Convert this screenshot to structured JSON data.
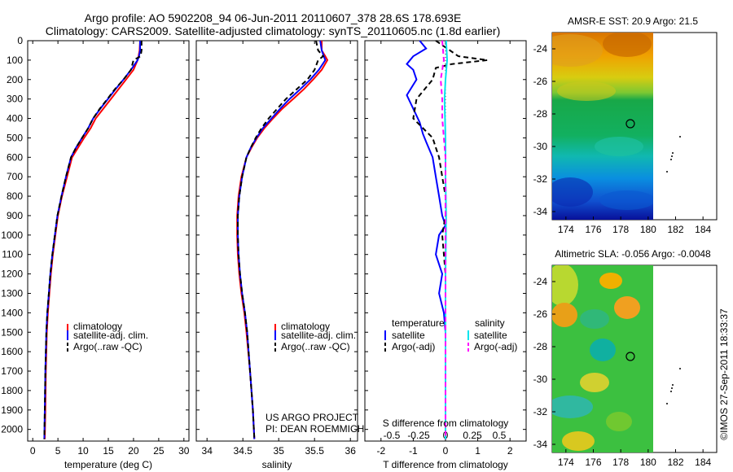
{
  "header": {
    "line1": "Argo profile: AO 5902208_94 06-Jun-2011 20110607_378 28.6S 178.693E",
    "line2": "Climatology: CARS2009. Satellite-adjusted climatology: synTS_20110605.nc (1.8d earlier)"
  },
  "colors": {
    "climatology": "#ff0000",
    "satellite": "#0000ff",
    "argo": "#000000",
    "sal_satellite": "#00e5ee",
    "sal_argo": "#ff00ff"
  },
  "panels": {
    "temperature": {
      "xlabel": "temperature (deg C)",
      "xlim": [
        -1,
        31
      ],
      "xticks": [
        "0",
        "5",
        "10",
        "15",
        "20",
        "25",
        "30"
      ],
      "xtick_values": [
        0,
        5,
        10,
        15,
        20,
        25,
        30
      ],
      "legend": [
        "climatology",
        "satellite-adj. clim.",
        "Argo(..raw -QC)"
      ]
    },
    "salinity": {
      "xlabel": "salinity",
      "xlim": [
        33.85,
        36.1
      ],
      "xticks": [
        "34",
        "34.5",
        "35",
        "35.5",
        "36"
      ],
      "xtick_values": [
        34,
        34.5,
        35,
        35.5,
        36
      ],
      "legend": [
        "climatology",
        "satellite-adj. clim.",
        "Argo(..raw -QC)"
      ],
      "note1": "US ARGO PROJECT",
      "note2": "PI: DEAN ROEMMICH"
    },
    "difference": {
      "xlabel": "T difference from climatology",
      "xlim": [
        -2.5,
        2.5
      ],
      "xticks": [
        "-2",
        "-1",
        "0",
        "1",
        "2"
      ],
      "xtick_values": [
        -2,
        -1,
        0,
        1,
        2
      ],
      "top_axis_label": "S difference from climatology",
      "top_ticks": [
        "-0.5",
        "-0.25",
        "0",
        "0.25",
        "0.5"
      ],
      "top_tick_values": [
        -0.5,
        -0.25,
        0,
        0.25,
        0.5
      ],
      "legend_temp_title": "temperature",
      "legend_sal_title": "salinity",
      "legend_temp": [
        "satellite",
        "Argo(-adj)"
      ],
      "legend_sal": [
        "satellite",
        "Argo(-adj)"
      ]
    }
  },
  "depth_axis": {
    "ylim": [
      0,
      2060
    ],
    "ticks": [
      "0",
      "100",
      "200",
      "300",
      "400",
      "500",
      "600",
      "700",
      "800",
      "900",
      "1000",
      "1100",
      "1200",
      "1300",
      "1400",
      "1500",
      "1600",
      "1700",
      "1800",
      "1900",
      "2000"
    ],
    "tick_values": [
      0,
      100,
      200,
      300,
      400,
      500,
      600,
      700,
      800,
      900,
      1000,
      1100,
      1200,
      1300,
      1400,
      1500,
      1600,
      1700,
      1800,
      1900,
      2000
    ]
  },
  "maps": {
    "sst": {
      "title": "AMSR-E SST: 20.9  Argo: 21.5",
      "xticks": [
        "174",
        "176",
        "178",
        "180",
        "182",
        "184"
      ],
      "xtick_values": [
        174,
        176,
        178,
        180,
        182,
        184
      ],
      "yticks": [
        "-24",
        "-26",
        "-28",
        "-30",
        "-32",
        "-34"
      ],
      "ytick_values": [
        -24,
        -26,
        -28,
        -30,
        -32,
        -34
      ],
      "lon_range": [
        173,
        185
      ],
      "lat_range": [
        -23,
        -34.5
      ],
      "float_position": [
        178.7,
        -28.6
      ]
    },
    "sla": {
      "title": "Altimetric SLA: -0.056  Argo: -0.0048",
      "xticks": [
        "174",
        "176",
        "178",
        "180",
        "182",
        "184"
      ],
      "xtick_values": [
        174,
        176,
        178,
        180,
        182,
        184
      ],
      "yticks": [
        "-24",
        "-26",
        "-28",
        "-30",
        "-32",
        "-34"
      ],
      "ytick_values": [
        -24,
        -26,
        -28,
        -30,
        -32,
        -34
      ],
      "lon_range": [
        173,
        185
      ],
      "lat_range": [
        -23,
        -34.5
      ],
      "float_position": [
        178.7,
        -28.6
      ]
    }
  },
  "credit": "©IMOS 27-Sep-2011 18:33:37",
  "chart_data": [
    {
      "type": "line",
      "title": "",
      "xlabel": "temperature (deg C)",
      "ylabel": "",
      "xlim": [
        -1,
        31
      ],
      "ylim": [
        0,
        2060
      ],
      "y_reversed": true,
      "series": [
        {
          "name": "climatology",
          "x": [
            21.3,
            21.2,
            21.0,
            20.8,
            20.0,
            18.5,
            17.0,
            15.5,
            14.0,
            12.5,
            11.5,
            10.2,
            9.0,
            7.8,
            6.8,
            5.8,
            5.0,
            4.5,
            4.0,
            3.6,
            3.3,
            3.0,
            2.8,
            2.6,
            2.5,
            2.4
          ],
          "y": [
            0,
            50,
            80,
            100,
            150,
            200,
            250,
            300,
            350,
            400,
            450,
            500,
            550,
            600,
            700,
            800,
            900,
            1000,
            1100,
            1200,
            1300,
            1400,
            1500,
            1700,
            1900,
            2050
          ]
        },
        {
          "name": "satellite-adj. clim.",
          "x": [
            21.3,
            21.3,
            21.1,
            20.8,
            19.5,
            18.0,
            16.4,
            14.9,
            13.4,
            12.0,
            11.0,
            9.8,
            8.6,
            7.6,
            6.6,
            5.7,
            4.9,
            4.4,
            3.9,
            3.5,
            3.2,
            2.9,
            2.7,
            2.5,
            2.4,
            2.3
          ],
          "y": [
            0,
            50,
            80,
            100,
            150,
            200,
            250,
            300,
            350,
            400,
            450,
            500,
            550,
            600,
            700,
            800,
            900,
            1000,
            1100,
            1200,
            1300,
            1400,
            1500,
            1700,
            1900,
            2050
          ]
        },
        {
          "name": "Argo(..raw -QC)",
          "x": [
            21.6,
            21.6,
            21.4,
            20.0,
            19.5,
            18.0,
            16.3,
            14.8,
            13.3,
            12.0,
            11.0,
            9.8,
            8.6,
            7.6,
            6.6,
            5.7,
            4.9,
            4.4,
            3.9,
            3.5,
            3.2,
            2.9,
            2.7,
            2.5,
            2.4,
            2.3
          ],
          "y": [
            0,
            50,
            80,
            100,
            150,
            200,
            250,
            300,
            350,
            400,
            450,
            500,
            550,
            600,
            700,
            800,
            900,
            1000,
            1100,
            1200,
            1300,
            1400,
            1500,
            1700,
            1900,
            2050
          ]
        }
      ]
    },
    {
      "type": "line",
      "title": "",
      "xlabel": "salinity",
      "ylabel": "",
      "xlim": [
        33.85,
        36.1
      ],
      "ylim": [
        0,
        2060
      ],
      "y_reversed": true,
      "series": [
        {
          "name": "climatology",
          "x": [
            35.6,
            35.6,
            35.65,
            35.68,
            35.6,
            35.48,
            35.35,
            35.2,
            35.05,
            34.92,
            34.8,
            34.7,
            34.62,
            34.55,
            34.48,
            34.44,
            34.42,
            34.42,
            34.43,
            34.45,
            34.48,
            34.52,
            34.55,
            34.6,
            34.64,
            34.66
          ],
          "y": [
            0,
            50,
            80,
            100,
            150,
            200,
            250,
            300,
            350,
            400,
            450,
            500,
            550,
            600,
            700,
            800,
            900,
            1000,
            1100,
            1200,
            1300,
            1400,
            1500,
            1700,
            1900,
            2050
          ]
        },
        {
          "name": "satellite-adj. clim.",
          "x": [
            35.58,
            35.6,
            35.63,
            35.65,
            35.56,
            35.44,
            35.3,
            35.15,
            35.02,
            34.9,
            34.78,
            34.69,
            34.61,
            34.55,
            34.49,
            34.45,
            34.43,
            34.43,
            34.44,
            34.46,
            34.49,
            34.53,
            34.56,
            34.6,
            34.64,
            34.66
          ],
          "y": [
            0,
            50,
            80,
            100,
            150,
            200,
            250,
            300,
            350,
            400,
            450,
            500,
            550,
            600,
            700,
            800,
            900,
            1000,
            1100,
            1200,
            1300,
            1400,
            1500,
            1700,
            1900,
            2050
          ]
        },
        {
          "name": "Argo(..raw -QC)",
          "x": [
            35.52,
            35.55,
            35.62,
            35.55,
            35.5,
            35.4,
            35.25,
            35.1,
            34.98,
            34.86,
            34.76,
            34.68,
            34.61,
            34.55,
            34.49,
            34.45,
            34.43,
            34.43,
            34.44,
            34.46,
            34.49,
            34.53,
            34.56,
            34.6,
            34.64,
            34.66
          ],
          "y": [
            0,
            50,
            80,
            100,
            150,
            200,
            250,
            300,
            350,
            400,
            450,
            500,
            550,
            600,
            700,
            800,
            900,
            1000,
            1100,
            1200,
            1300,
            1400,
            1500,
            1700,
            1900,
            2050
          ]
        }
      ]
    },
    {
      "type": "line",
      "title": "",
      "xlabel": "T difference from climatology",
      "ylabel": "",
      "xlim": [
        -2.5,
        2.5
      ],
      "ylim": [
        0,
        2060
      ],
      "y_reversed": true,
      "series": [
        {
          "name": "temperature satellite",
          "x": [
            -0.8,
            -0.6,
            -1.0,
            -1.2,
            -1.0,
            -0.9,
            -1.2,
            -1.0,
            -0.8,
            -0.7,
            -0.6,
            -0.4,
            -0.3,
            -0.2,
            -0.1,
            0.0,
            -0.2,
            -0.3,
            -0.1,
            -0.2,
            -0.05,
            0.0,
            0.0,
            0.0,
            0.0
          ],
          "y": [
            0,
            40,
            80,
            120,
            150,
            200,
            280,
            350,
            420,
            480,
            520,
            600,
            700,
            800,
            900,
            950,
            1000,
            1100,
            1200,
            1300,
            1400,
            1500,
            1600,
            1800,
            2050
          ]
        },
        {
          "name": "temperature Argo(-adj)",
          "x": [
            -0.3,
            0.4,
            1.3,
            0.2,
            -0.3,
            -0.4,
            -0.9,
            -1.0,
            -0.7,
            -0.4,
            -0.3,
            -0.2,
            -0.1,
            0.0,
            0.0,
            -0.1,
            0.0,
            0.0,
            0.0,
            0.0
          ],
          "y": [
            0,
            80,
            100,
            120,
            140,
            200,
            300,
            400,
            450,
            500,
            550,
            600,
            700,
            800,
            900,
            1000,
            1200,
            1400,
            1600,
            2050
          ]
        },
        {
          "name": "salinity satellite",
          "x": [
            0.02,
            0.05,
            0.0,
            -0.03,
            0.0,
            0.0,
            0.02,
            0.0,
            0.0,
            0.0
          ],
          "y": [
            0,
            100,
            200,
            300,
            500,
            700,
            900,
            1200,
            1600,
            2050
          ]
        },
        {
          "name": "salinity Argo(-adj)",
          "x": [
            -0.1,
            -0.05,
            -0.15,
            -0.1,
            -0.1,
            -0.05,
            0.0,
            0.0,
            0.0
          ],
          "y": [
            0,
            100,
            200,
            300,
            400,
            500,
            600,
            700,
            2050
          ]
        }
      ]
    }
  ]
}
